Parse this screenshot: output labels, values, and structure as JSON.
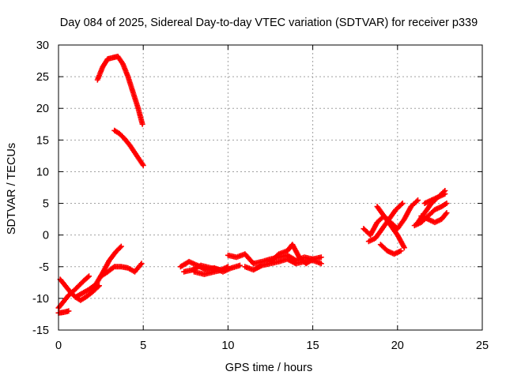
{
  "chart_data": {
    "type": "scatter",
    "title": "Day 084 of 2025, Sidereal Day-to-day VTEC variation (SDTVAR) for receiver p339",
    "xlabel": "GPS time / hours",
    "ylabel": "SDTVAR / TECUs",
    "xlim": [
      0,
      25
    ],
    "ylim": [
      -15,
      30
    ],
    "x_ticks": [
      0,
      5,
      10,
      15,
      20,
      25
    ],
    "y_ticks": [
      -15,
      -10,
      -5,
      0,
      5,
      10,
      15,
      20,
      25,
      30
    ],
    "grid": true,
    "marker": "plus",
    "series_color": "#ff0000",
    "series": [
      {
        "x": [
          2.3,
          2.6,
          2.9,
          3.2,
          3.5,
          3.8,
          4.1,
          4.4,
          4.7,
          4.95
        ],
        "y": [
          24.5,
          26.5,
          27.8,
          28.0,
          28.2,
          27.0,
          25.0,
          22.5,
          20.0,
          17.5
        ]
      },
      {
        "x": [
          3.3,
          3.6,
          3.9,
          4.2,
          4.5,
          4.8,
          5.0
        ],
        "y": [
          16.5,
          16.0,
          15.2,
          14.2,
          13.0,
          11.8,
          11.0
        ]
      },
      {
        "x": [
          0.0,
          0.3,
          0.6,
          0.9,
          1.2,
          1.5,
          1.8
        ],
        "y": [
          -11.5,
          -10.5,
          -9.5,
          -8.8,
          -8.0,
          -7.2,
          -6.5
        ]
      },
      {
        "x": [
          0.1,
          0.4,
          0.7,
          1.0,
          1.3,
          1.6,
          2.0,
          2.4
        ],
        "y": [
          -7.0,
          -8.0,
          -9.0,
          -9.8,
          -10.3,
          -9.8,
          -9.0,
          -8.0
        ]
      },
      {
        "x": [
          1.0,
          1.4,
          1.8,
          2.2,
          2.6,
          3.0,
          3.4,
          3.7
        ],
        "y": [
          -9.8,
          -9.2,
          -8.6,
          -7.8,
          -6.0,
          -4.0,
          -2.6,
          -1.8
        ]
      },
      {
        "x": [
          2.5,
          2.9,
          3.3,
          3.7,
          4.1,
          4.5,
          4.9
        ],
        "y": [
          -6.5,
          -5.8,
          -5.0,
          -5.0,
          -5.2,
          -5.8,
          -4.5
        ]
      },
      {
        "x": [
          0.0,
          0.3,
          0.6
        ],
        "y": [
          -12.3,
          -12.2,
          -12.0
        ]
      },
      {
        "x": [
          7.2,
          7.7,
          8.2,
          8.7,
          9.2,
          9.7,
          10.2,
          10.7
        ],
        "y": [
          -5.0,
          -4.2,
          -4.8,
          -5.5,
          -5.2,
          -5.8,
          -5.2,
          -4.8
        ]
      },
      {
        "x": [
          7.4,
          7.9,
          8.4,
          9.0,
          9.6,
          10.0
        ],
        "y": [
          -5.8,
          -5.5,
          -4.8,
          -5.2,
          -5.5,
          -5.0
        ]
      },
      {
        "x": [
          8.0,
          8.6,
          9.2,
          9.7
        ],
        "y": [
          -5.8,
          -6.2,
          -5.8,
          -5.5
        ]
      },
      {
        "x": [
          10.0,
          10.5,
          11.0,
          11.5,
          12.0,
          12.5,
          13.0,
          13.5,
          14.0,
          14.5,
          15.0,
          15.5
        ],
        "y": [
          -3.2,
          -3.5,
          -3.0,
          -4.5,
          -4.2,
          -3.8,
          -3.5,
          -3.2,
          -4.0,
          -3.5,
          -3.8,
          -3.5
        ]
      },
      {
        "x": [
          11.0,
          11.5,
          12.0,
          12.5,
          13.0,
          13.5,
          14.0,
          14.5,
          15.0,
          15.5
        ],
        "y": [
          -5.0,
          -5.5,
          -4.8,
          -4.5,
          -4.2,
          -3.8,
          -4.5,
          -4.2,
          -4.0,
          -4.5
        ]
      },
      {
        "x": [
          12.5,
          13.0,
          13.5,
          13.8,
          14.2,
          14.6,
          15.0
        ],
        "y": [
          -4.2,
          -3.0,
          -2.5,
          -1.5,
          -3.5,
          -4.5,
          -3.8
        ]
      },
      {
        "x": [
          18.0,
          18.4,
          18.8,
          19.2,
          19.6,
          20.0,
          20.4
        ],
        "y": [
          1.0,
          0.0,
          2.0,
          3.0,
          1.5,
          0.0,
          -2.0
        ]
      },
      {
        "x": [
          18.3,
          18.7,
          19.1,
          19.5,
          19.9,
          20.3
        ],
        "y": [
          -1.0,
          -0.5,
          1.0,
          2.5,
          4.0,
          5.0
        ]
      },
      {
        "x": [
          18.8,
          19.2,
          19.6,
          20.0,
          20.4,
          20.8,
          21.2
        ],
        "y": [
          4.5,
          3.0,
          2.0,
          1.0,
          2.5,
          4.5,
          5.5
        ]
      },
      {
        "x": [
          19.0,
          19.4,
          19.8,
          20.2
        ],
        "y": [
          -1.5,
          -2.5,
          -3.0,
          -2.5
        ]
      },
      {
        "x": [
          21.2,
          21.6,
          22.0,
          22.4,
          22.8
        ],
        "y": [
          2.0,
          3.5,
          5.0,
          6.0,
          7.0
        ]
      },
      {
        "x": [
          21.0,
          21.4,
          21.8,
          22.2,
          22.6,
          22.9
        ],
        "y": [
          1.5,
          2.0,
          3.0,
          4.0,
          4.5,
          5.0
        ]
      },
      {
        "x": [
          21.4,
          21.8,
          22.2,
          22.6,
          22.9
        ],
        "y": [
          3.0,
          2.5,
          2.0,
          2.5,
          3.5
        ]
      },
      {
        "x": [
          21.6,
          22.0,
          22.4,
          22.8
        ],
        "y": [
          5.0,
          5.5,
          6.0,
          6.5
        ]
      }
    ]
  }
}
